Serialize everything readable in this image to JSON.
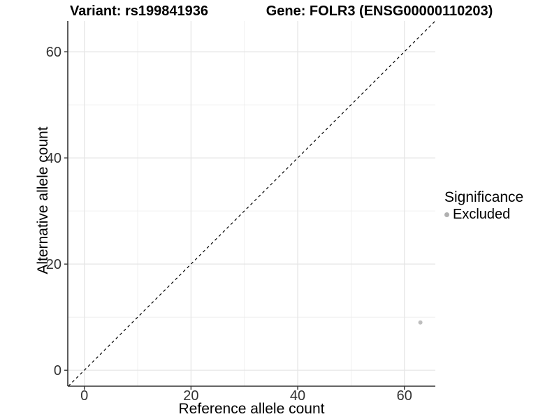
{
  "chart_data": {
    "type": "scatter",
    "titles": {
      "variant": "Variant: rs199841936",
      "gene": "Gene: FOLR3 (ENSG00000110203)"
    },
    "xlabel": "Reference allele count",
    "ylabel": "Alternative allele count",
    "xlim": [
      -3.1,
      65.8
    ],
    "ylim": [
      -3.0,
      65.8
    ],
    "x_ticks": [
      0,
      20,
      40,
      60
    ],
    "y_ticks": [
      0,
      20,
      40,
      60
    ],
    "x_minor_ticks": [
      10,
      30,
      50
    ],
    "y_minor_ticks": [
      10,
      30,
      50
    ],
    "grid": true,
    "legend_position": "right",
    "legend": {
      "title": "Significance",
      "items": [
        {
          "label": "Excluded",
          "color": "#b0b0b0"
        }
      ]
    },
    "series": [
      {
        "name": "Excluded",
        "color": "#bebebe",
        "point_radius": 3,
        "points": [
          {
            "x": 63,
            "y": 9
          }
        ]
      }
    ],
    "identity_line": {
      "style": "dashed",
      "color": "#000000",
      "dash": [
        4,
        4
      ]
    },
    "colors": {
      "background": "#ffffff",
      "axis": "#333333",
      "tick_label": "#333333",
      "grid_major": "#e5e5e5",
      "grid_minor": "#ececec"
    }
  }
}
